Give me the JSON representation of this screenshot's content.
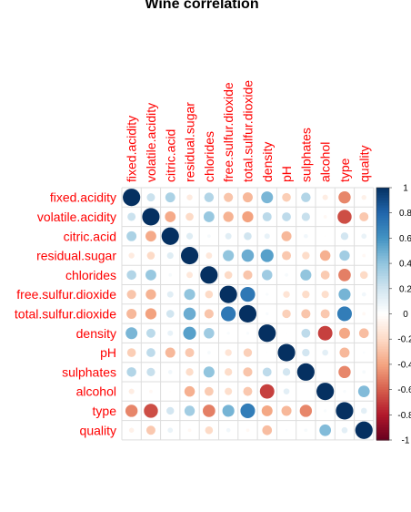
{
  "chart_data": {
    "type": "heatmap",
    "title": "Wine correlation",
    "variables": [
      "fixed.acidity",
      "volatile.acidity",
      "citric.acid",
      "residual.sugar",
      "chlorides",
      "free.sulfur.dioxide",
      "total.sulfur.dioxide",
      "density",
      "pH",
      "sulphates",
      "alcohol",
      "type",
      "quality"
    ],
    "matrix": [
      [
        1.0,
        0.22,
        0.32,
        -0.11,
        0.3,
        -0.28,
        -0.33,
        0.46,
        -0.25,
        0.3,
        -0.1,
        -0.49,
        -0.08
      ],
      [
        0.22,
        1.0,
        -0.38,
        -0.2,
        0.38,
        -0.35,
        -0.41,
        0.27,
        0.26,
        0.23,
        -0.04,
        -0.65,
        -0.27
      ],
      [
        0.32,
        -0.38,
        1.0,
        0.14,
        0.04,
        0.13,
        0.2,
        0.1,
        -0.33,
        0.06,
        -0.01,
        0.19,
        0.09
      ],
      [
        -0.11,
        -0.2,
        0.14,
        1.0,
        -0.13,
        0.4,
        0.5,
        0.55,
        -0.27,
        -0.19,
        -0.36,
        0.35,
        -0.04
      ],
      [
        0.3,
        0.38,
        0.04,
        -0.13,
        1.0,
        -0.2,
        -0.28,
        0.36,
        0.04,
        0.4,
        -0.26,
        -0.51,
        -0.2
      ],
      [
        -0.28,
        -0.35,
        0.13,
        0.4,
        -0.2,
        1.0,
        0.72,
        0.03,
        -0.15,
        -0.19,
        -0.18,
        0.47,
        0.06
      ],
      [
        -0.33,
        -0.41,
        0.2,
        0.5,
        -0.28,
        0.72,
        1.0,
        0.03,
        -0.24,
        -0.28,
        -0.27,
        0.7,
        -0.04
      ],
      [
        0.46,
        0.27,
        0.1,
        0.55,
        0.36,
        0.03,
        0.03,
        1.0,
        0.01,
        0.26,
        -0.69,
        -0.39,
        -0.31
      ],
      [
        -0.25,
        0.26,
        -0.33,
        -0.27,
        0.04,
        -0.15,
        -0.24,
        0.01,
        1.0,
        0.19,
        0.12,
        -0.33,
        0.02
      ],
      [
        0.3,
        0.23,
        0.06,
        -0.19,
        0.4,
        -0.19,
        -0.28,
        0.26,
        0.19,
        1.0,
        -0.0,
        -0.49,
        0.04
      ],
      [
        -0.1,
        -0.04,
        -0.01,
        -0.36,
        -0.26,
        -0.18,
        -0.27,
        -0.69,
        0.12,
        -0.0,
        1.0,
        0.03,
        0.44
      ],
      [
        -0.49,
        -0.65,
        0.19,
        0.35,
        -0.51,
        0.47,
        0.7,
        -0.39,
        -0.33,
        -0.49,
        0.03,
        1.0,
        0.12
      ],
      [
        -0.08,
        -0.27,
        0.09,
        -0.04,
        -0.2,
        0.06,
        -0.04,
        -0.31,
        0.02,
        0.04,
        0.44,
        0.12,
        1.0
      ]
    ],
    "colorbar": {
      "range": [
        -1,
        1
      ],
      "ticks": [
        "1",
        "0.8",
        "0.6",
        "0.4",
        "0.2",
        "0",
        "-0.2",
        "-0.4",
        "-0.6",
        "-0.8",
        "-1"
      ],
      "colors": [
        "#67001F",
        "#B2182B",
        "#D6604D",
        "#F4A582",
        "#FDDBC7",
        "#FFFFFF",
        "#D1E5F0",
        "#92C5DE",
        "#4393C3",
        "#2166AC",
        "#053061"
      ]
    }
  }
}
